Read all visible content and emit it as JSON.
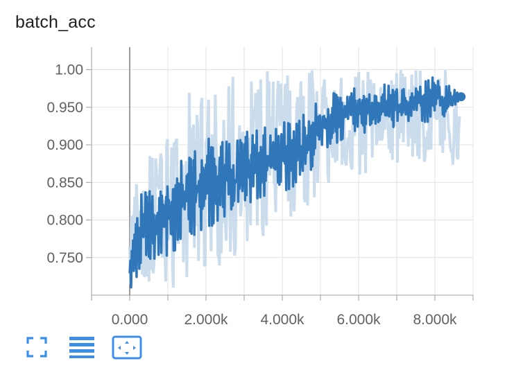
{
  "title": "batch_acc",
  "colors": {
    "line": "#2f77b9",
    "raw": "#c5d9ea",
    "grid": "#e2e2e2",
    "axis": "#9e9e9e",
    "zero_line": "#9a9a9a",
    "icon": "#3b8fe8"
  },
  "toolbar": {
    "icons": [
      "expand-icon",
      "list-icon",
      "fit-domain-icon"
    ]
  },
  "chart_data": {
    "type": "line",
    "title": "batch_acc",
    "xlabel": "",
    "ylabel": "",
    "xlim": [
      -1000,
      9000
    ],
    "ylim": [
      0.7,
      1.03
    ],
    "x_ticks": [
      {
        "value": 0,
        "label": "0.000"
      },
      {
        "value": 2000,
        "label": "2.000k"
      },
      {
        "value": 4000,
        "label": "4.000k"
      },
      {
        "value": 6000,
        "label": "6.000k"
      },
      {
        "value": 8000,
        "label": "8.000k"
      }
    ],
    "y_ticks": [
      {
        "value": 0.75,
        "label": "0.750"
      },
      {
        "value": 0.8,
        "label": "0.800"
      },
      {
        "value": 0.85,
        "label": "0.850"
      },
      {
        "value": 0.9,
        "label": "0.900"
      },
      {
        "value": 0.95,
        "label": "0.950"
      },
      {
        "value": 1.0,
        "label": "1.00"
      }
    ],
    "grid": true,
    "series": [
      {
        "role": "raw",
        "x": [
          0,
          300,
          600,
          900,
          1200,
          1500,
          1800,
          2100,
          2400,
          2700,
          3000,
          3300,
          3600,
          3900,
          4200,
          4500,
          4800,
          5100,
          5400,
          5700,
          6000,
          6300,
          6600,
          6900,
          7200,
          7500,
          7800,
          8100,
          8400,
          8650
        ],
        "upper": [
          0.84,
          0.86,
          0.9,
          0.92,
          0.93,
          0.97,
          0.99,
          0.96,
          0.98,
          1.0,
          0.99,
          1.0,
          1.0,
          0.99,
          1.0,
          1.0,
          1.0,
          1.0,
          1.0,
          1.0,
          1.0,
          1.0,
          1.0,
          1.0,
          1.0,
          1.0,
          1.0,
          1.0,
          1.0,
          1.0
        ],
        "lower": [
          0.7,
          0.7,
          0.7,
          0.71,
          0.71,
          0.72,
          0.7,
          0.73,
          0.74,
          0.75,
          0.76,
          0.77,
          0.78,
          0.79,
          0.8,
          0.82,
          0.81,
          0.84,
          0.86,
          0.87,
          0.83,
          0.88,
          0.89,
          0.87,
          0.88,
          0.87,
          0.88,
          0.87,
          0.87,
          0.88
        ]
      },
      {
        "role": "smoothed",
        "x": [
          0,
          300,
          600,
          900,
          1200,
          1500,
          1800,
          2100,
          2400,
          2700,
          3000,
          3300,
          3600,
          3900,
          4200,
          4500,
          4800,
          5100,
          5400,
          5700,
          6000,
          6300,
          6600,
          6900,
          7200,
          7500,
          7800,
          8100,
          8400,
          8650
        ],
        "values": [
          0.72,
          0.78,
          0.79,
          0.8,
          0.82,
          0.83,
          0.84,
          0.85,
          0.86,
          0.85,
          0.87,
          0.87,
          0.88,
          0.89,
          0.89,
          0.9,
          0.91,
          0.93,
          0.94,
          0.94,
          0.95,
          0.95,
          0.96,
          0.95,
          0.96,
          0.96,
          0.96,
          0.97,
          0.96,
          0.964
        ],
        "lower": [
          0.7,
          0.74,
          0.74,
          0.75,
          0.76,
          0.78,
          0.78,
          0.79,
          0.8,
          0.8,
          0.82,
          0.82,
          0.83,
          0.84,
          0.84,
          0.85,
          0.87,
          0.89,
          0.9,
          0.91,
          0.91,
          0.92,
          0.93,
          0.92,
          0.93,
          0.93,
          0.93,
          0.94,
          0.93,
          0.96
        ],
        "upper": [
          0.76,
          0.84,
          0.84,
          0.86,
          0.88,
          0.88,
          0.9,
          0.91,
          0.91,
          0.9,
          0.92,
          0.92,
          0.93,
          0.93,
          0.94,
          0.94,
          0.95,
          0.97,
          0.97,
          0.97,
          0.98,
          0.97,
          0.98,
          0.98,
          0.98,
          0.98,
          0.99,
          0.99,
          0.98,
          0.97
        ]
      }
    ]
  }
}
